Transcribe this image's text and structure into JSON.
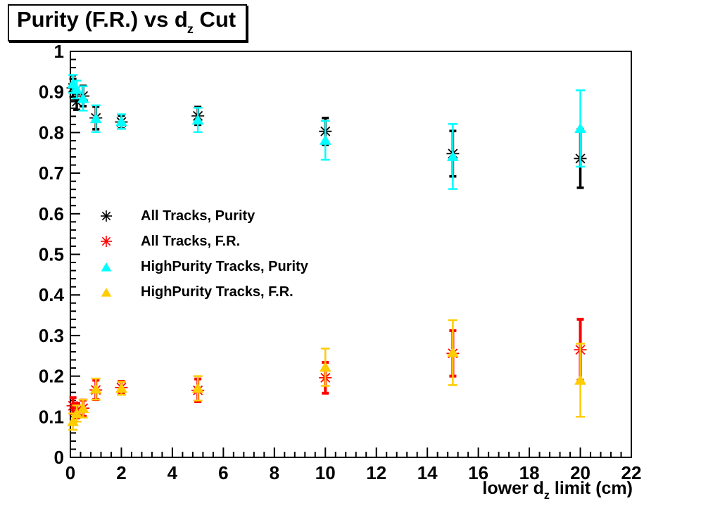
{
  "title": {
    "prefix": "Purity (F.R.) vs d",
    "sub": "z",
    "suffix": " Cut"
  },
  "x_axis_label": {
    "prefix": "lower d",
    "sub": "z",
    "suffix": " limit (cm)"
  },
  "chart_data": {
    "type": "scatter",
    "title": "Purity (F.R.) vs d_z Cut",
    "xlabel": "lower d_z limit (cm)",
    "ylabel": "",
    "xlim": [
      0,
      22
    ],
    "ylim": [
      0,
      1
    ],
    "grid": false,
    "legend_position": "inside-upper-left",
    "x_major_step": 2,
    "x_minor_step": 0.4,
    "y_major_step": 0.1,
    "y_minor_step": 0.02,
    "x_tick_labels": [
      "0",
      "2",
      "4",
      "6",
      "8",
      "10",
      "12",
      "14",
      "16",
      "18",
      "20",
      "22"
    ],
    "y_tick_labels": [
      "0",
      "0.1",
      "0.2",
      "0.3",
      "0.4",
      "0.5",
      "0.6",
      "0.7",
      "0.8",
      "0.9",
      "1"
    ],
    "x": [
      0.1,
      0.25,
      0.5,
      1,
      2,
      5,
      10,
      15,
      20
    ],
    "series": [
      {
        "name": "All Tracks, Purity",
        "marker": "asterisk",
        "color": "#000000",
        "line_width": 3.5,
        "y": [
          0.91,
          0.876,
          0.89,
          0.836,
          0.826,
          0.841,
          0.803,
          0.748,
          0.736
        ],
        "yerr": [
          0.022,
          0.02,
          0.025,
          0.028,
          0.016,
          0.022,
          0.033,
          0.056,
          0.072
        ]
      },
      {
        "name": "All Tracks, F.R.",
        "marker": "asterisk",
        "color": "#ff0000",
        "line_width": 4,
        "y": [
          0.127,
          0.115,
          0.121,
          0.166,
          0.172,
          0.165,
          0.196,
          0.256,
          0.265
        ],
        "yerr": [
          0.02,
          0.018,
          0.02,
          0.024,
          0.015,
          0.028,
          0.038,
          0.056,
          0.075
        ]
      },
      {
        "name": "HighPurity Tracks, Purity",
        "marker": "triangle",
        "color": "#00ffff",
        "line_width": 2.5,
        "y": [
          0.92,
          0.906,
          0.884,
          0.834,
          0.827,
          0.831,
          0.781,
          0.741,
          0.81
        ],
        "yerr": [
          0.022,
          0.022,
          0.03,
          0.033,
          0.018,
          0.03,
          0.048,
          0.08,
          0.094
        ]
      },
      {
        "name": "HighPurity Tracks, F.R.",
        "marker": "triangle",
        "color": "#ffcc00",
        "line_width": 2.5,
        "y": [
          0.088,
          0.108,
          0.12,
          0.168,
          0.17,
          0.17,
          0.222,
          0.258,
          0.19
        ],
        "yerr": [
          0.02,
          0.02,
          0.022,
          0.026,
          0.016,
          0.03,
          0.046,
          0.08,
          0.09
        ]
      }
    ]
  }
}
